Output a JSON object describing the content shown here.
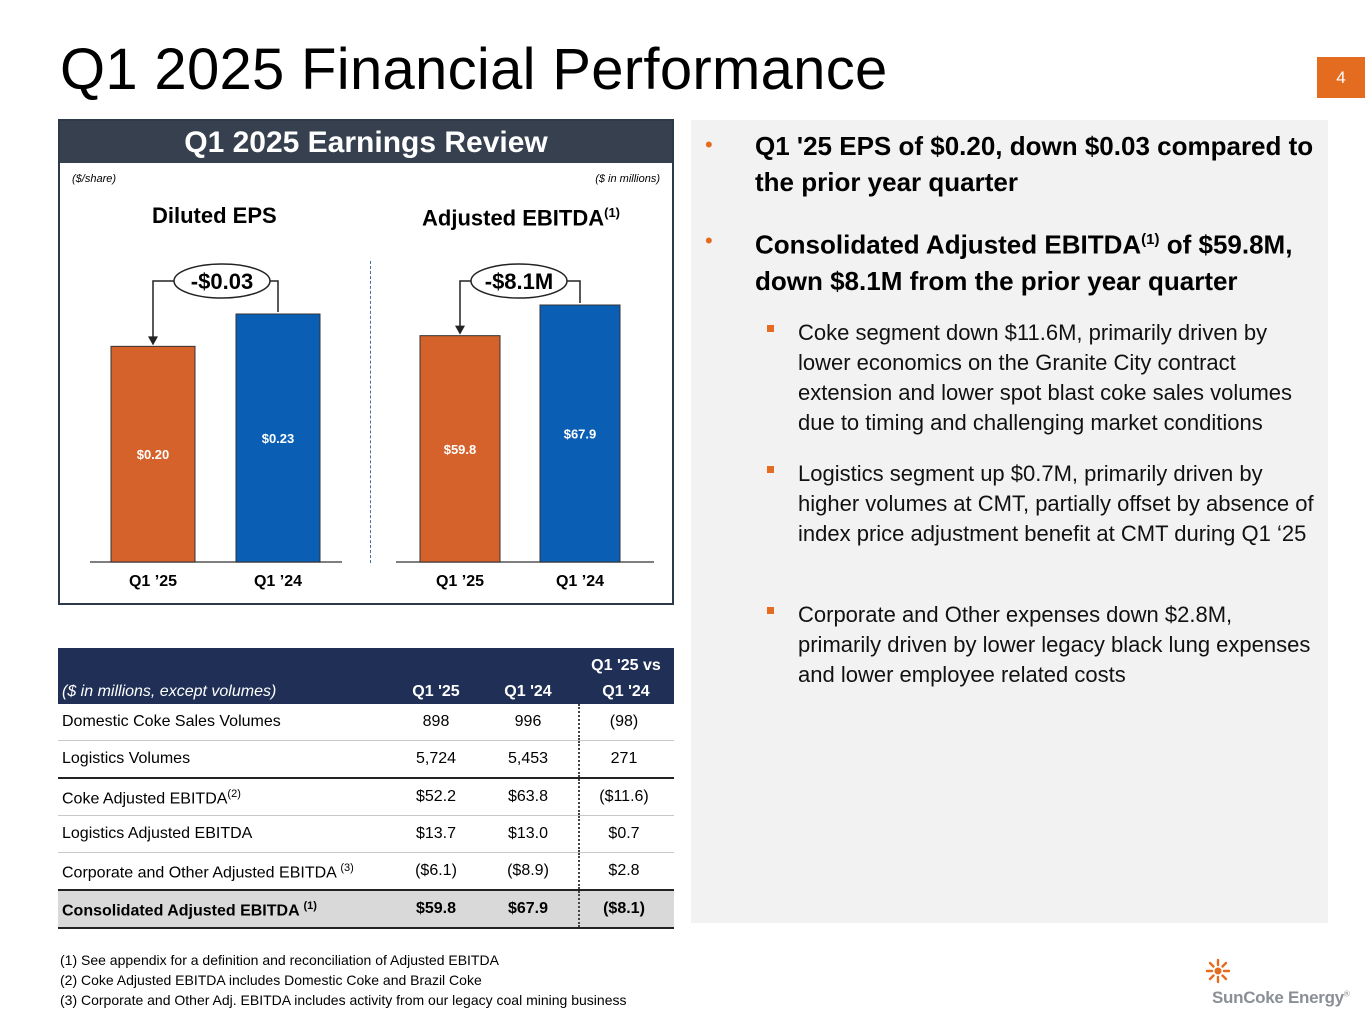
{
  "slide": {
    "title": "Q1 2025 Financial Performance",
    "page_number": "4"
  },
  "review": {
    "header": "Q1 2025 Earnings Review",
    "eps_unit": "($/share)",
    "ebitda_unit": "($ in millions)",
    "eps_title": "Diluted EPS",
    "ebitda_title": "Adjusted EBITDA",
    "ebitda_title_sup": "(1)"
  },
  "chart_data": [
    {
      "type": "bar",
      "title": "Diluted EPS",
      "ylabel": "($/share)",
      "categories": [
        "Q1 ’25",
        "Q1 ’24"
      ],
      "values": [
        0.2,
        0.23
      ],
      "value_labels": [
        "$0.20",
        "$0.23"
      ],
      "colors": [
        "#d4622a",
        "#0a5fb4"
      ],
      "delta_label": "-$0.03"
    },
    {
      "type": "bar",
      "title": "Adjusted EBITDA",
      "ylabel": "($ in millions)",
      "categories": [
        "Q1 ’25",
        "Q1 ’24"
      ],
      "values": [
        59.8,
        67.9
      ],
      "value_labels": [
        "$59.8",
        "$67.9"
      ],
      "colors": [
        "#d4622a",
        "#0a5fb4"
      ],
      "delta_label": "-$8.1M"
    }
  ],
  "table": {
    "header": {
      "label": "($ in millions, except volumes)",
      "c1": "Q1 '25",
      "c2": "Q1 '24",
      "c3_line1": "Q1 '25 vs",
      "c3_line2": "Q1 '24"
    },
    "rows": [
      {
        "label": "Domestic Coke Sales Volumes",
        "sup": "",
        "c1": "898",
        "c2": "996",
        "c3": "(98)"
      },
      {
        "label": "Logistics Volumes",
        "sup": "",
        "c1": "5,724",
        "c2": "5,453",
        "c3": "271"
      },
      {
        "label": "Coke Adjusted EBITDA",
        "sup": "(2)",
        "c1": "$52.2",
        "c2": "$63.8",
        "c3": "($11.6)"
      },
      {
        "label": "Logistics Adjusted EBITDA",
        "sup": "",
        "c1": "$13.7",
        "c2": "$13.0",
        "c3": "$0.7"
      },
      {
        "label": "Corporate and Other Adjusted EBITDA ",
        "sup": "(3)",
        "c1": "($6.1)",
        "c2": "($8.9)",
        "c3": "$2.8"
      },
      {
        "label": "Consolidated Adjusted EBITDA ",
        "sup": "(1)",
        "c1": "$59.8",
        "c2": "$67.9",
        "c3": "($8.1)"
      }
    ]
  },
  "bullets": {
    "b1": "Q1 '25 EPS of $0.20, down $0.03 compared to the prior year quarter",
    "b2_pre": "Consolidated Adjusted EBITDA",
    "b2_sup": "(1)",
    "b2_post": " of $59.8M, down $8.1M from the prior year quarter",
    "sub": [
      "Coke segment down $11.6M, primarily driven by lower economics on the Granite City contract extension and lower spot blast coke sales volumes due to timing and challenging market conditions",
      "Logistics segment up $0.7M, primarily driven by higher volumes at CMT, partially offset by absence of index price adjustment benefit at CMT during Q1 ‘25",
      "Corporate and Other expenses down $2.8M, primarily driven by lower legacy black lung expenses and lower employee related costs"
    ]
  },
  "footnotes": [
    "(1)  See appendix for a definition and reconciliation of Adjusted EBITDA",
    "(2)  Coke Adjusted EBITDA includes Domestic Coke and Brazil Coke",
    "(3)  Corporate and Other Adj. EBITDA includes activity from our legacy coal mining business"
  ],
  "logo": {
    "name": "SunCoke Energy",
    "mark": "®",
    "icon": "sun-icon",
    "accent": "#e46c21"
  }
}
